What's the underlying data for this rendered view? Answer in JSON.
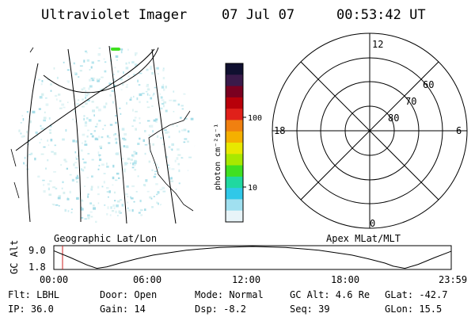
{
  "header": {
    "instrument": "Ultraviolet Imager",
    "date": "07 Jul 07",
    "time": "00:53:42 UT"
  },
  "colorbar": {
    "unit_label": "photon cm⁻²s⁻¹",
    "ticks": [
      "100",
      "10"
    ],
    "colors": [
      "#101030",
      "#3a1a4a",
      "#7a0020",
      "#b8000a",
      "#e0201a",
      "#f08010",
      "#f5b000",
      "#e8e800",
      "#a8e800",
      "#40e020",
      "#20d8a0",
      "#30c8e8",
      "#a0e0f0",
      "#e8f4f8"
    ]
  },
  "polar_plot": {
    "ring_labels": [
      "80",
      "70",
      "60"
    ],
    "mlt_labels": {
      "top": "12",
      "bottom": "0",
      "left": "18",
      "right": "6"
    }
  },
  "coordinate_labels": {
    "left": "Geographic Lat/Lon",
    "right": "Apex MLat/MLT"
  },
  "altitude_chart": {
    "ylabel": "GC Alt",
    "ytick_top": "9.0",
    "ytick_bottom": "1.8",
    "xticks": [
      "00:00",
      "06:00",
      "12:00",
      "18:00",
      "23:59"
    ],
    "current_time_marker_color": "#cc2222"
  },
  "chart_data": {
    "type": "line",
    "ylabel": "GC Alt",
    "ylim": [
      1.8,
      9.0
    ],
    "xlim_hours": [
      0,
      24
    ],
    "x": [
      0,
      1,
      2,
      2.6,
      3.2,
      4,
      5,
      6,
      8,
      10,
      12,
      14,
      16,
      18,
      19,
      20,
      20.5,
      21.2,
      22,
      23,
      23.98
    ],
    "values": [
      7.6,
      5.4,
      3.0,
      1.9,
      2.4,
      3.6,
      5.0,
      6.2,
      7.8,
      8.7,
      9.0,
      8.7,
      7.8,
      6.2,
      5.0,
      3.6,
      2.6,
      1.9,
      3.2,
      5.4,
      7.4
    ]
  },
  "status": {
    "flt": "Flt: LBHL",
    "door": "Door: Open",
    "mode": "Mode: Normal",
    "gc_alt": "GC Alt: 4.6 Re",
    "glat": "GLat: -42.7",
    "ip": "IP: 36.0",
    "gain": "Gain: 14",
    "dsp": "Dsp:   -8.2",
    "seq": "Seq: 39",
    "glon": "GLon:  15.5"
  }
}
